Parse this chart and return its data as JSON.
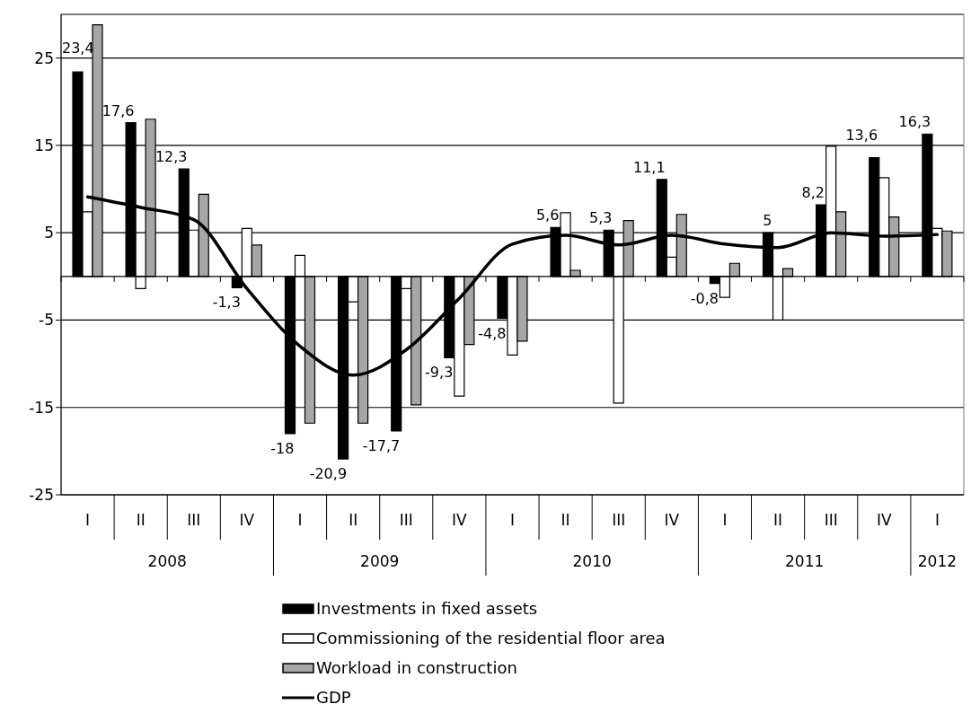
{
  "chart_data": {
    "type": "bar",
    "categories": [
      "I",
      "II",
      "III",
      "IV",
      "I",
      "II",
      "III",
      "IV",
      "I",
      "II",
      "III",
      "IV",
      "I",
      "II",
      "III",
      "IV",
      "I"
    ],
    "annotations": [
      "2008",
      "2009",
      "2010",
      "2011",
      "2012"
    ],
    "series": [
      {
        "name": "Investments in fixed assets",
        "color": "#000000",
        "values": [
          23.4,
          17.6,
          12.3,
          -1.3,
          -18,
          -20.9,
          -17.7,
          -9.3,
          -4.8,
          5.6,
          5.3,
          11.1,
          -0.8,
          5,
          8.2,
          13.6,
          16.3
        ],
        "value_labels": [
          "23,4",
          "17,6",
          "12,3",
          "-1,3",
          "-18",
          "-20,9",
          "-17,7",
          "-9,3",
          "-4,8",
          "5,6",
          "5,3",
          "11,1",
          "-0,8",
          "5",
          "8,2",
          "13,6",
          "16,3"
        ]
      },
      {
        "name": "Commissioning of the residential floor area",
        "color": "#ffffff",
        "values": [
          7.4,
          -1.4,
          5.3,
          5.5,
          2.4,
          -2.9,
          -1.4,
          -13.7,
          -9.0,
          7.3,
          -14.5,
          2.2,
          -2.4,
          -5.0,
          14.9,
          11.3,
          5.5
        ]
      },
      {
        "name": "Workload in construction",
        "color": "#a6a6a6",
        "values": [
          28.8,
          18.0,
          9.4,
          3.6,
          -16.8,
          -16.8,
          -14.7,
          -7.8,
          -7.4,
          0.7,
          6.4,
          7.1,
          1.5,
          0.9,
          7.4,
          6.8,
          5.2
        ]
      },
      {
        "name": "GDP",
        "type": "line",
        "color": "#000000",
        "values": [
          9.1,
          7.9,
          6.5,
          -1.4,
          -8.0,
          -11.3,
          -8.4,
          -2.5,
          3.7,
          4.7,
          3.6,
          4.7,
          3.7,
          3.3,
          5.0,
          4.6,
          4.8
        ]
      }
    ],
    "ylim": [
      -25,
      30
    ],
    "yticks": [
      -25,
      -15,
      -5,
      5,
      15,
      25
    ],
    "grid": "y",
    "legend": "bottom",
    "marker": "none"
  }
}
